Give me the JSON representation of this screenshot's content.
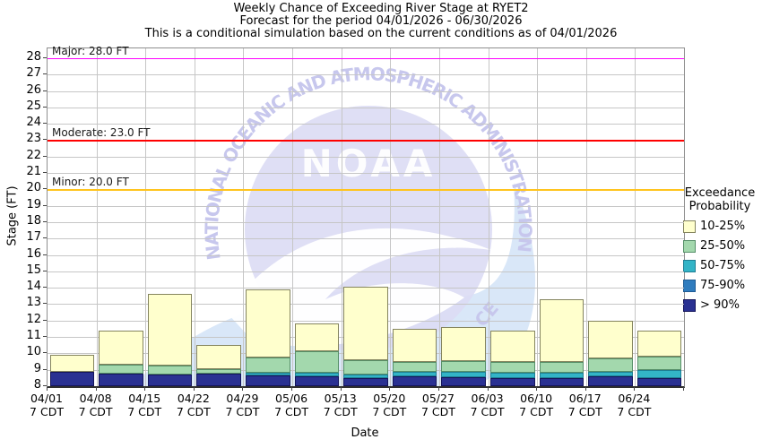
{
  "chart_data": {
    "type": "bar",
    "stacked": true,
    "title": "Weekly Chance of Exceeding River Stage at RYET2",
    "subtitle": "Forecast for the period 04/01/2026 - 06/30/2026",
    "note": "This is a conditional simulation based on the current conditions as of 04/01/2026",
    "xlabel": "Date",
    "ylabel": "Stage (FT)",
    "ylim": [
      8,
      28.6
    ],
    "y_ticks": [
      8,
      9,
      10,
      11,
      12,
      13,
      14,
      15,
      16,
      17,
      18,
      19,
      20,
      21,
      22,
      23,
      24,
      25,
      26,
      27,
      28
    ],
    "grid": true,
    "categories": [
      "04/01",
      "04/08",
      "04/15",
      "04/22",
      "04/29",
      "05/06",
      "05/13",
      "05/20",
      "05/27",
      "06/03",
      "06/10",
      "06/17",
      "06/24"
    ],
    "x_tick_second_line": "7 CDT",
    "stack_base": 8.0,
    "series_note": "series listed bottom-to-top of stack; 'tops' are cumulative stage (FT) where each segment ends; null = segment not visible that week",
    "series": [
      {
        "name": "> 90%",
        "tops": [
          8.85,
          8.75,
          8.7,
          8.75,
          8.65,
          8.6,
          8.5,
          8.6,
          8.55,
          8.5,
          8.5,
          8.6,
          8.5
        ]
      },
      {
        "name": "75-90%",
        "tops": [
          null,
          null,
          null,
          null,
          null,
          null,
          null,
          null,
          null,
          null,
          null,
          null,
          null
        ]
      },
      {
        "name": "50-75%",
        "tops": [
          null,
          null,
          null,
          null,
          8.8,
          8.8,
          8.7,
          8.85,
          8.9,
          8.8,
          8.8,
          8.9,
          9.0
        ]
      },
      {
        "name": "25-50%",
        "tops": [
          null,
          9.3,
          9.25,
          9.05,
          9.75,
          10.15,
          9.6,
          9.45,
          9.55,
          9.45,
          9.45,
          9.7,
          9.8
        ]
      },
      {
        "name": "10-25%",
        "tops": [
          9.9,
          11.4,
          13.65,
          10.5,
          13.9,
          11.8,
          14.05,
          11.5,
          11.6,
          11.4,
          13.3,
          12.0,
          11.4
        ]
      }
    ],
    "flood_lines": [
      {
        "name": "major",
        "label": "Major: 28.0 FT",
        "stage": 28.0,
        "color": "#FF00FF"
      },
      {
        "name": "moderate",
        "label": "Moderate: 23.0 FT",
        "stage": 23.0,
        "color": "#FF0000"
      },
      {
        "name": "minor",
        "label": "Minor: 20.0 FT",
        "stage": 20.0,
        "color": "#FFC41E"
      }
    ],
    "legend_position": "right",
    "legend": {
      "title_line1": "Exceedance",
      "title_line2": "Probability",
      "items": [
        {
          "label": "10-25%",
          "fill": "#FFFFCD",
          "border": "#84845E"
        },
        {
          "label": "25-50%",
          "fill": "#A3D8AD",
          "border": "#568F68"
        },
        {
          "label": "50-75%",
          "fill": "#33B4C7",
          "border": "#1F7E93"
        },
        {
          "label": "75-90%",
          "fill": "#2F7CBE",
          "border": "#1F5C94"
        },
        {
          "label": "> 90%",
          "fill": "#2A3192",
          "border": "#14145A"
        }
      ]
    }
  },
  "watermark": {
    "ring_text": "NATIONAL OCEANIC AND ATMOSPHERIC ADMINISTRATION",
    "center_text": "NOAA",
    "bottom_text_fragment": "CE"
  }
}
